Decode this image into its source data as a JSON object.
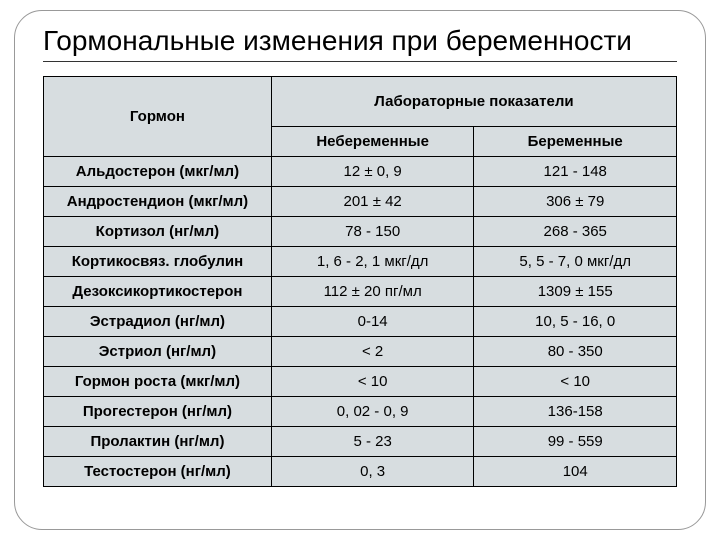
{
  "title": "Гормональные изменения при беременности",
  "table": {
    "columns": {
      "hormone": "Гормон",
      "lab": "Лабораторные показатели",
      "nonpregnant": "Небеременные",
      "pregnant": "Беременные"
    },
    "rows": [
      {
        "hormone": "Альдостерон (мкг/мл)",
        "nonpregnant": "12 ± 0, 9",
        "pregnant": "121 - 148"
      },
      {
        "hormone": "Андростендион (мкг/мл)",
        "nonpregnant": "201 ± 42",
        "pregnant": "306 ± 79"
      },
      {
        "hormone": "Кортизол (нг/мл)",
        "nonpregnant": "78 - 150",
        "pregnant": "268 - 365"
      },
      {
        "hormone": "Кортикосвяз. глобулин",
        "nonpregnant": "1, 6 - 2, 1 мкг/дл",
        "pregnant": "5, 5 - 7, 0 мкг/дл"
      },
      {
        "hormone": "Дезоксикортикостерон",
        "nonpregnant": "112 ± 20 пг/мл",
        "pregnant": "1309 ± 155"
      },
      {
        "hormone": "Эстрадиол (нг/мл)",
        "nonpregnant": "0-14",
        "pregnant": "10, 5 - 16, 0"
      },
      {
        "hormone": "Эстриол (нг/мл)",
        "nonpregnant": "< 2",
        "pregnant": "80 - 350"
      },
      {
        "hormone": "Гормон роста (мкг/мл)",
        "nonpregnant": "< 10",
        "pregnant": "< 10"
      },
      {
        "hormone": "Прогестерон (нг/мл)",
        "nonpregnant": "0, 02 - 0, 9",
        "pregnant": "136-158"
      },
      {
        "hormone": "Пролактин (нг/мл)",
        "nonpregnant": "5 - 23",
        "pregnant": "99 - 559"
      },
      {
        "hormone": "Тестостерон (нг/мл)",
        "nonpregnant": "0, 3",
        "pregnant": "104"
      }
    ]
  },
  "styling": {
    "cell_background": "#d7dde0",
    "border_color": "#000000",
    "title_fontsize": 28,
    "cell_fontsize": 15,
    "frame_border_radius": 28
  }
}
